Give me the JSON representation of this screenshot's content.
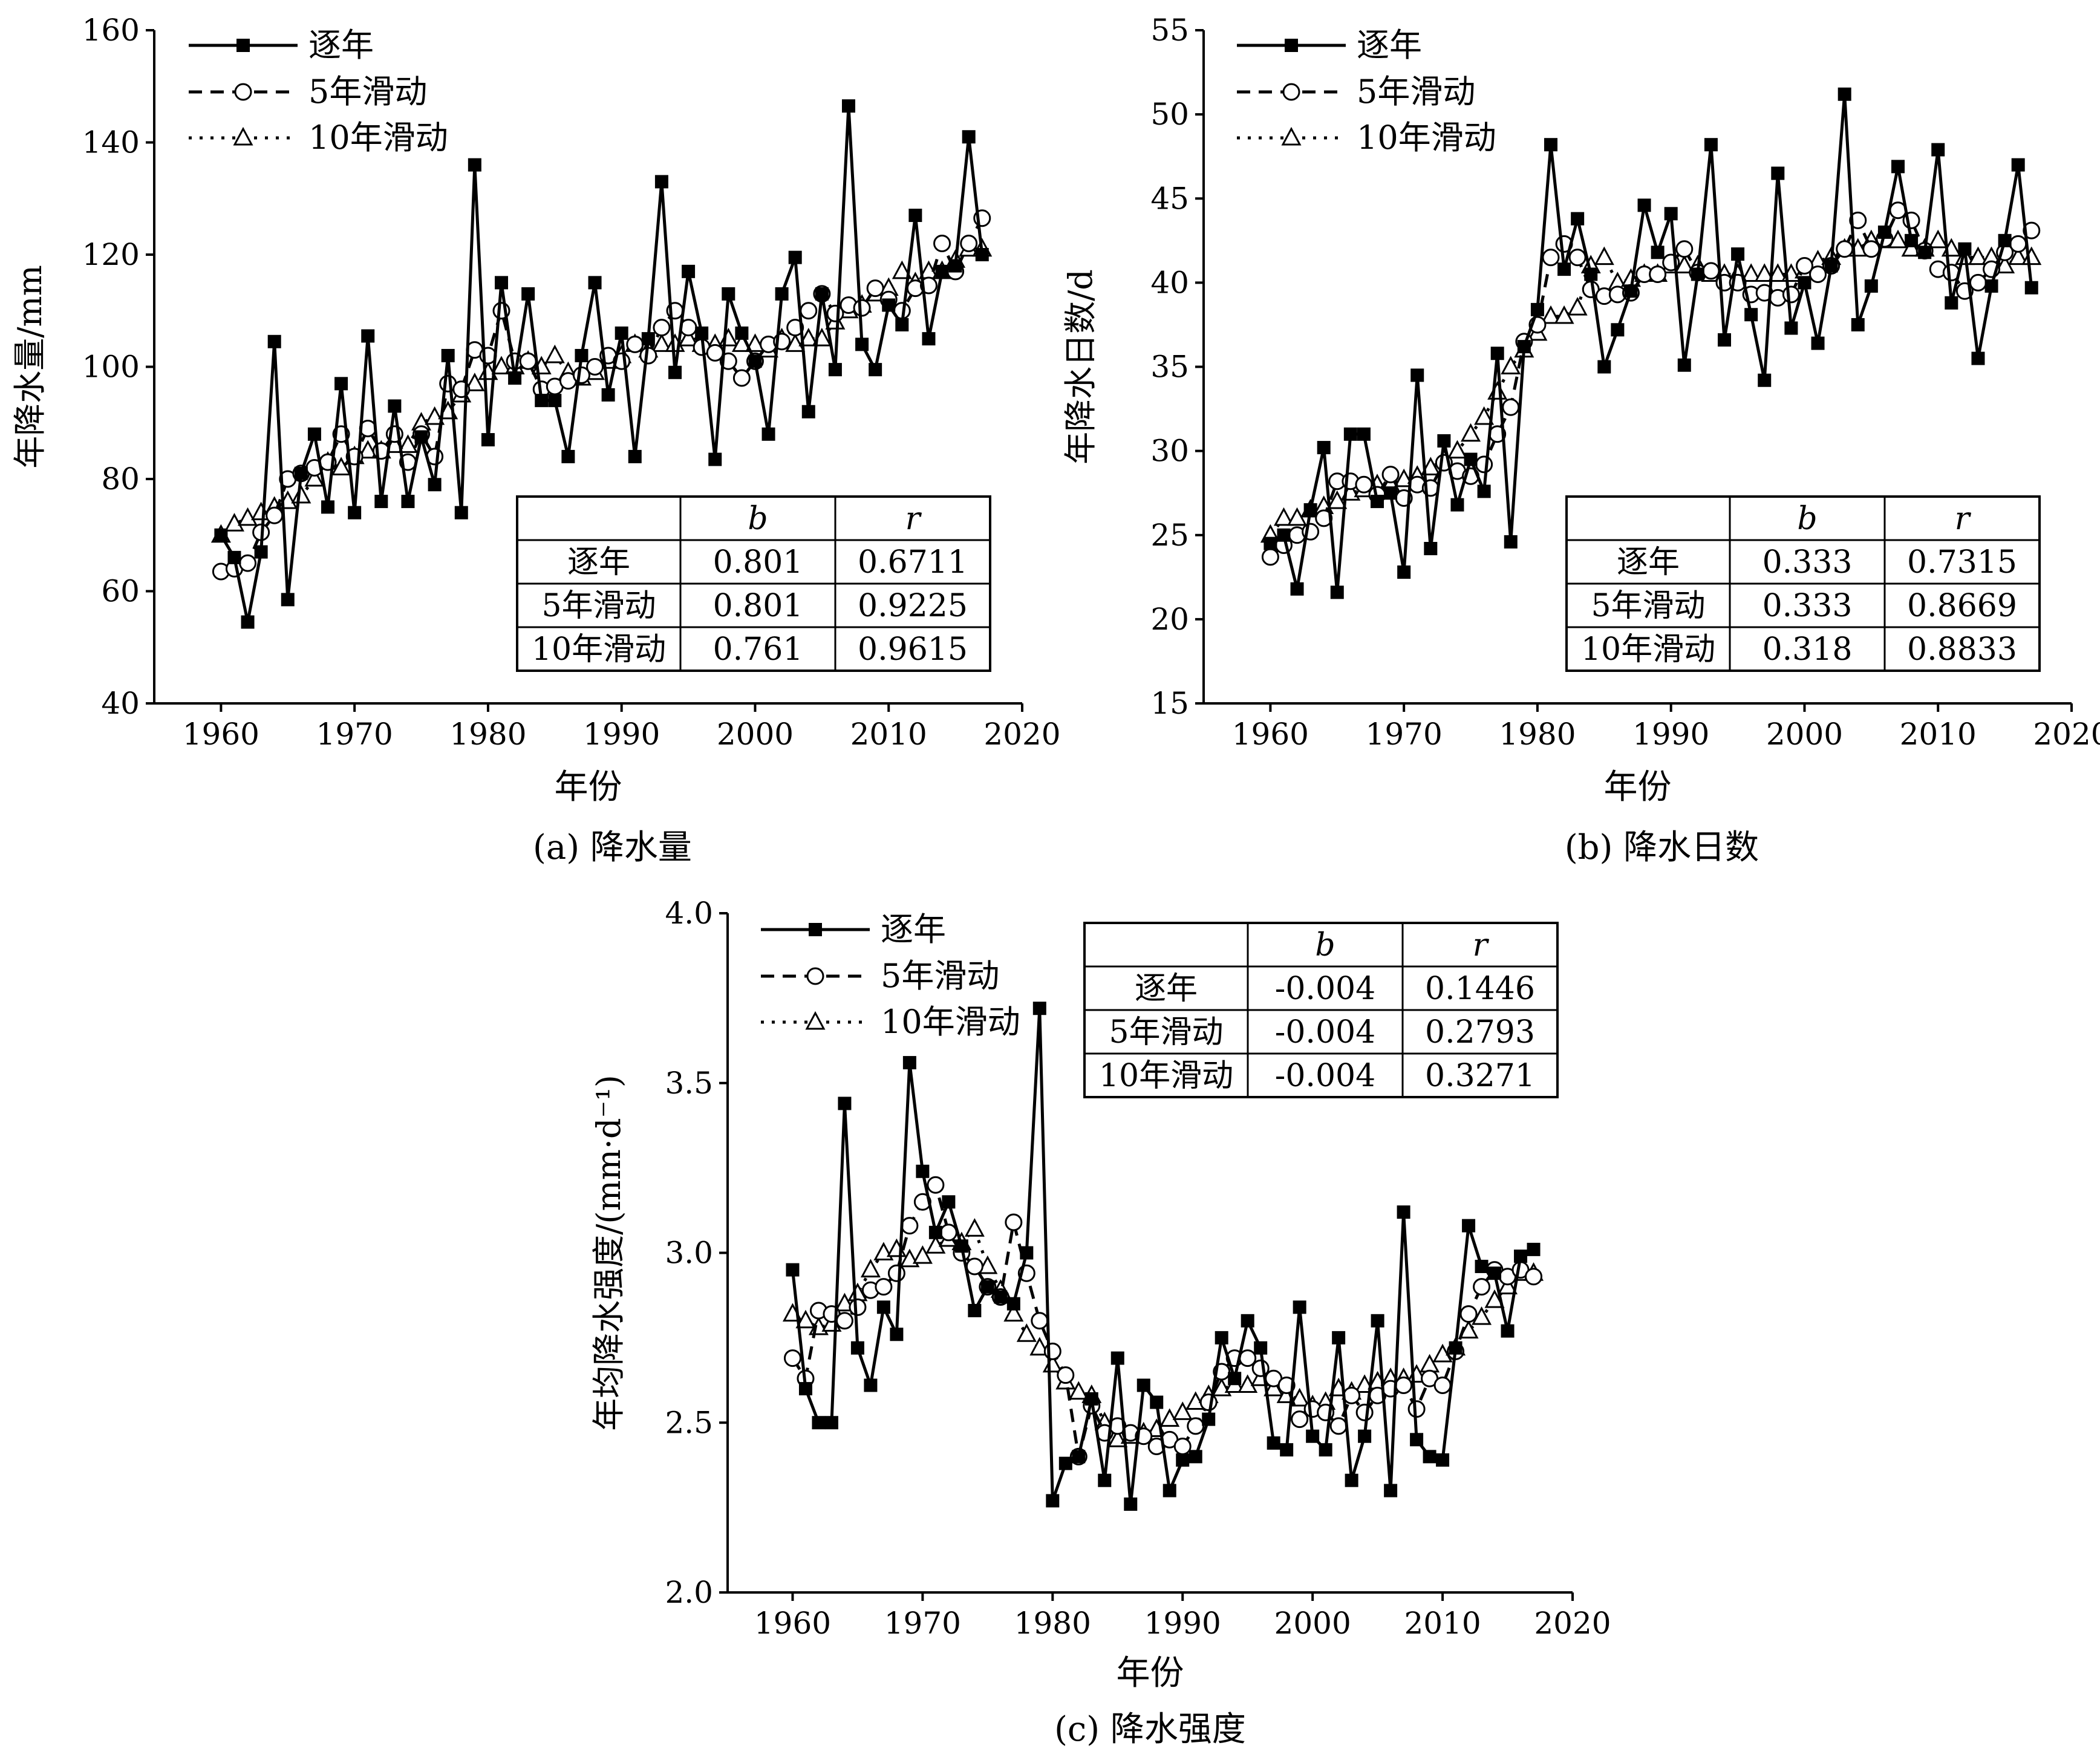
{
  "chart_data": [
    {
      "id": "a",
      "type": "line",
      "caption": "(a) 降水量",
      "xlabel": "年份",
      "ylabel": "年降水量/mm",
      "xlim": [
        1955,
        2020
      ],
      "ylim": [
        40,
        160
      ],
      "xticks": [
        "1960",
        "1970",
        "1980",
        "1990",
        "2000",
        "2010",
        "2020"
      ],
      "yticks": [
        "40",
        "60",
        "80",
        "100",
        "120",
        "140",
        "160"
      ],
      "legend": [
        "逐年",
        "5年滑动",
        "10年滑动"
      ],
      "x": [
        1960,
        1961,
        1962,
        1963,
        1964,
        1965,
        1966,
        1967,
        1968,
        1969,
        1970,
        1971,
        1972,
        1973,
        1974,
        1975,
        1976,
        1977,
        1978,
        1979,
        1980,
        1981,
        1982,
        1983,
        1984,
        1985,
        1986,
        1987,
        1988,
        1989,
        1990,
        1991,
        1992,
        1993,
        1994,
        1995,
        1996,
        1997,
        1998,
        1999,
        2000,
        2001,
        2002,
        2003,
        2004,
        2005,
        2006,
        2007,
        2008,
        2009,
        2010,
        2011,
        2012,
        2013,
        2014,
        2015,
        2016,
        2017
      ],
      "series": [
        {
          "name": "逐年",
          "values": [
            70,
            66,
            54.5,
            67,
            104.5,
            58.5,
            81,
            88,
            75,
            97,
            74,
            105.5,
            76,
            93,
            76,
            87.5,
            79,
            102,
            74,
            136,
            87,
            115,
            98,
            113,
            94,
            94,
            84,
            102,
            115,
            95,
            106,
            84,
            105,
            133,
            99,
            117,
            106,
            83.5,
            113,
            106,
            101,
            88,
            113,
            119.5,
            92,
            113,
            99.5,
            146.5,
            104,
            99.5,
            111,
            107.5,
            127,
            105,
            117,
            118,
            141,
            120
          ]
        },
        {
          "name": "5年滑动",
          "values": [
            63.5,
            64,
            65,
            70.5,
            73.5,
            80,
            81,
            82,
            83,
            88,
            84,
            89,
            85,
            88,
            83,
            88,
            84,
            97,
            96,
            103,
            102,
            110,
            101,
            101,
            96,
            96.5,
            97.5,
            98.5,
            100,
            102,
            101,
            104,
            102,
            107,
            110,
            107,
            103.5,
            102.5,
            101,
            98,
            101,
            104,
            104.5,
            107,
            110,
            113,
            109.5,
            111,
            110.5,
            114,
            112,
            110,
            114,
            114.5,
            122,
            117,
            122,
            126.5
          ]
        },
        {
          "name": "10年滑动",
          "values": [
            70,
            72,
            73,
            74,
            75,
            76,
            77,
            80,
            83,
            82,
            84,
            85,
            85,
            86,
            86,
            90,
            91,
            92,
            95,
            97,
            99,
            100,
            100,
            101,
            100,
            102,
            99,
            98,
            99,
            101,
            102,
            104,
            103,
            104,
            104,
            105,
            104,
            104,
            105,
            104,
            104,
            103,
            105,
            104,
            105,
            105,
            108,
            110,
            111,
            113,
            114,
            117,
            115,
            117,
            117,
            119,
            121,
            121
          ]
        }
      ],
      "table": {
        "headers": [
          "",
          "b",
          "r"
        ],
        "rows": [
          [
            "逐年",
            "0.801",
            "0.6711"
          ],
          [
            "5年滑动",
            "0.801",
            "0.9225"
          ],
          [
            "10年滑动",
            "0.761",
            "0.9615"
          ]
        ]
      }
    },
    {
      "id": "b",
      "type": "line",
      "caption": "(b) 降水日数",
      "xlabel": "年份",
      "ylabel": "年降水日数/d",
      "xlim": [
        1955,
        2020
      ],
      "ylim": [
        15,
        55
      ],
      "xticks": [
        "1960",
        "1970",
        "1980",
        "1990",
        "2000",
        "2010",
        "2020"
      ],
      "yticks": [
        "15",
        "20",
        "25",
        "30",
        "35",
        "40",
        "45",
        "50",
        "55"
      ],
      "legend": [
        "逐年",
        "5年滑动",
        "10年滑动"
      ],
      "x": [
        1960,
        1961,
        1962,
        1963,
        1964,
        1965,
        1966,
        1967,
        1968,
        1969,
        1970,
        1971,
        1972,
        1973,
        1974,
        1975,
        1976,
        1977,
        1978,
        1979,
        1980,
        1981,
        1982,
        1983,
        1984,
        1985,
        1986,
        1987,
        1988,
        1989,
        1990,
        1991,
        1992,
        1993,
        1994,
        1995,
        1996,
        1997,
        1998,
        1999,
        2000,
        2001,
        2002,
        2003,
        2004,
        2005,
        2006,
        2007,
        2008,
        2009,
        2010,
        2011,
        2012,
        2013,
        2014,
        2015,
        2016,
        2017
      ],
      "series": [
        {
          "name": "逐年",
          "values": [
            24.5,
            25,
            21.8,
            26.5,
            30.2,
            21.6,
            31,
            31,
            27,
            27.5,
            22.8,
            34.5,
            24.2,
            30.6,
            26.8,
            29.5,
            27.6,
            35.8,
            24.6,
            36.2,
            38.4,
            48.2,
            40.8,
            43.8,
            40.5,
            35,
            37.2,
            39.5,
            44.6,
            41.8,
            44.1,
            35.1,
            40.5,
            48.2,
            36.6,
            41.7,
            38.1,
            34.2,
            46.5,
            37.3,
            40,
            36.4,
            41,
            51.2,
            37.5,
            39.8,
            43,
            46.9,
            42.5,
            41.8,
            47.9,
            38.8,
            42,
            35.5,
            39.8,
            42.5,
            47,
            39.7
          ]
        },
        {
          "name": "5年滑动",
          "values": [
            23.7,
            24.4,
            25,
            25.2,
            26,
            28.2,
            28.2,
            28,
            27.4,
            28.6,
            27.2,
            28,
            27.8,
            29.3,
            28.8,
            28.5,
            29.2,
            31,
            32.6,
            36.5,
            37.5,
            41.5,
            42.3,
            41.5,
            39.6,
            39.2,
            39.3,
            39.4,
            40.5,
            40.5,
            41.2,
            42,
            40.6,
            40.7,
            40,
            40,
            39.3,
            39.4,
            39.1,
            39.3,
            41,
            40.5,
            41,
            42,
            43.7,
            42,
            42.6,
            44.3,
            43.7,
            41.9,
            40.8,
            40.6,
            39.5,
            40,
            40.8,
            41.8,
            42.3,
            43.1
          ]
        },
        {
          "name": "10年滑动",
          "values": [
            25,
            26,
            26,
            26.5,
            26.7,
            27,
            27.5,
            27.7,
            28,
            28,
            28.3,
            28.5,
            29,
            29.5,
            30,
            31,
            32,
            33.5,
            35,
            36,
            37,
            38,
            38,
            38.5,
            41,
            41.5,
            40,
            40.2,
            40.5,
            40.5,
            41,
            41,
            41,
            40.5,
            40.5,
            40.5,
            40.5,
            40.5,
            40.5,
            40.5,
            40.7,
            41.3,
            41.5,
            42,
            42,
            42.5,
            42.5,
            42.5,
            42,
            42,
            42.5,
            42,
            41.5,
            41.5,
            41.5,
            41,
            41.5,
            41.5
          ]
        }
      ],
      "table": {
        "headers": [
          "",
          "b",
          "r"
        ],
        "rows": [
          [
            "逐年",
            "0.333",
            "0.7315"
          ],
          [
            "5年滑动",
            "0.333",
            "0.8669"
          ],
          [
            "10年滑动",
            "0.318",
            "0.8833"
          ]
        ]
      }
    },
    {
      "id": "c",
      "type": "line",
      "caption": "(c) 降水强度",
      "xlabel": "年份",
      "ylabel": "年均降水强度/(mm·d⁻¹)",
      "xlim": [
        1955,
        2020
      ],
      "ylim": [
        2.0,
        4.0
      ],
      "xticks": [
        "1960",
        "1970",
        "1980",
        "1990",
        "2000",
        "2010",
        "2020"
      ],
      "yticks": [
        "2.0",
        "2.5",
        "3.0",
        "3.5",
        "4.0"
      ],
      "legend": [
        "逐年",
        "5年滑动",
        "10年滑动"
      ],
      "x": [
        1960,
        1961,
        1962,
        1963,
        1964,
        1965,
        1966,
        1967,
        1968,
        1969,
        1970,
        1971,
        1972,
        1973,
        1974,
        1975,
        1976,
        1977,
        1978,
        1979,
        1980,
        1981,
        1982,
        1983,
        1984,
        1985,
        1986,
        1987,
        1988,
        1989,
        1990,
        1991,
        1992,
        1993,
        1994,
        1995,
        1996,
        1997,
        1998,
        1999,
        2000,
        2001,
        2002,
        2003,
        2004,
        2005,
        2006,
        2007,
        2008,
        2009,
        2010,
        2011,
        2012,
        2013,
        2014,
        2015,
        2016,
        2017
      ],
      "series": [
        {
          "name": "逐年",
          "values": [
            2.95,
            2.6,
            2.5,
            2.5,
            3.44,
            2.72,
            2.61,
            2.84,
            2.76,
            3.56,
            3.24,
            3.06,
            3.15,
            3.02,
            2.83,
            2.9,
            2.87,
            2.85,
            3.0,
            3.72,
            2.27,
            2.38,
            2.4,
            2.57,
            2.33,
            2.69,
            2.26,
            2.61,
            2.56,
            2.3,
            2.39,
            2.4,
            2.51,
            2.75,
            2.63,
            2.8,
            2.72,
            2.44,
            2.42,
            2.84,
            2.46,
            2.42,
            2.75,
            2.33,
            2.46,
            2.8,
            2.3,
            3.12,
            2.45,
            2.4,
            2.39,
            2.72,
            3.08,
            2.96,
            2.94,
            2.77,
            2.99,
            3.01
          ]
        },
        {
          "name": "5年滑动",
          "values": [
            2.69,
            2.63,
            2.83,
            2.82,
            2.8,
            2.84,
            2.89,
            2.9,
            2.94,
            3.08,
            3.15,
            3.2,
            3.06,
            3.0,
            2.96,
            2.9,
            2.87,
            3.09,
            2.94,
            2.8,
            2.71,
            2.64,
            2.4,
            2.55,
            2.47,
            2.49,
            2.47,
            2.46,
            2.43,
            2.45,
            2.43,
            2.49,
            2.56,
            2.65,
            2.69,
            2.69,
            2.66,
            2.63,
            2.61,
            2.51,
            2.54,
            2.53,
            2.49,
            2.58,
            2.53,
            2.58,
            2.6,
            2.61,
            2.54,
            2.63,
            2.61,
            2.71,
            2.82,
            2.9,
            2.95,
            2.93,
            2.95,
            2.93
          ]
        },
        {
          "name": "10年滑动",
          "values": [
            2.82,
            2.8,
            2.78,
            2.79,
            2.85,
            2.88,
            2.95,
            3.0,
            3.01,
            2.98,
            2.99,
            3.02,
            3.04,
            3.03,
            3.07,
            2.96,
            2.89,
            2.82,
            2.76,
            2.72,
            2.67,
            2.62,
            2.59,
            2.58,
            2.5,
            2.45,
            2.46,
            2.47,
            2.48,
            2.51,
            2.53,
            2.56,
            2.58,
            2.6,
            2.61,
            2.61,
            2.63,
            2.6,
            2.58,
            2.57,
            2.55,
            2.56,
            2.6,
            2.59,
            2.61,
            2.62,
            2.63,
            2.63,
            2.64,
            2.67,
            2.7,
            2.72,
            2.77,
            2.81,
            2.86,
            2.9,
            2.94,
            2.94
          ]
        }
      ],
      "table": {
        "headers": [
          "",
          "b",
          "r"
        ],
        "rows": [
          [
            "逐年",
            "-0.004",
            "0.1446"
          ],
          [
            "5年滑动",
            "-0.004",
            "0.2793"
          ],
          [
            "10年滑动",
            "-0.004",
            "0.3271"
          ]
        ]
      }
    }
  ]
}
